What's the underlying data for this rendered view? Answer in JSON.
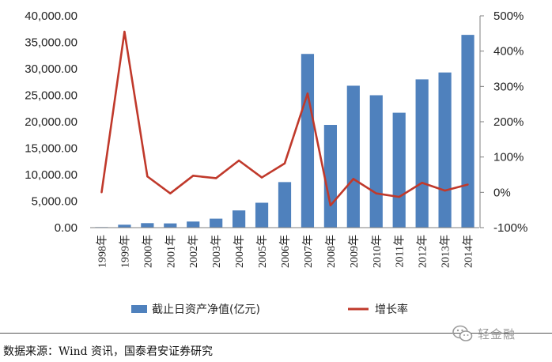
{
  "chart_data": {
    "type": "bar+line",
    "categories": [
      "1998年",
      "1999年",
      "2000年",
      "2001年",
      "2002年",
      "2003年",
      "2004年",
      "2005年",
      "2006年",
      "2007年",
      "2008年",
      "2009年",
      "2010年",
      "2011年",
      "2012年",
      "2013年",
      "2014年"
    ],
    "series": [
      {
        "name": "截止日资产净值(亿元)",
        "type": "bar",
        "axis": "left",
        "color": "#4F81BD",
        "values": [
          100,
          550,
          850,
          800,
          1150,
          1700,
          3250,
          4700,
          8600,
          32800,
          19400,
          26800,
          25000,
          21700,
          28000,
          29300,
          36400
        ]
      },
      {
        "name": "增长率",
        "type": "line",
        "axis": "right",
        "color": "#C0392B",
        "values": [
          0,
          455,
          45,
          -3,
          47,
          40,
          90,
          42,
          82,
          280,
          -37,
          38,
          -3,
          -13,
          27,
          5,
          22
        ]
      }
    ],
    "yaxis_left": {
      "min": 0,
      "max": 40000,
      "ticks": [
        0,
        5000,
        10000,
        15000,
        20000,
        25000,
        30000,
        35000,
        40000
      ],
      "tick_labels": [
        "0.00",
        "5,000.00",
        "10,000.00",
        "15,000.00",
        "20,000.00",
        "25,000.00",
        "30,000.00",
        "35,000.00",
        "40,000.00"
      ]
    },
    "yaxis_right": {
      "min": -100,
      "max": 500,
      "ticks": [
        -100,
        0,
        100,
        200,
        300,
        400,
        500
      ],
      "tick_labels": [
        "-100%",
        "0%",
        "100%",
        "200%",
        "300%",
        "400%",
        "500%"
      ]
    },
    "grid": false,
    "legend": "bottom"
  },
  "source_note": "数据来源：Wind 资讯，国泰君安证券研究",
  "watermark": {
    "text": "轻金融",
    "icon": "wechat-icon"
  }
}
